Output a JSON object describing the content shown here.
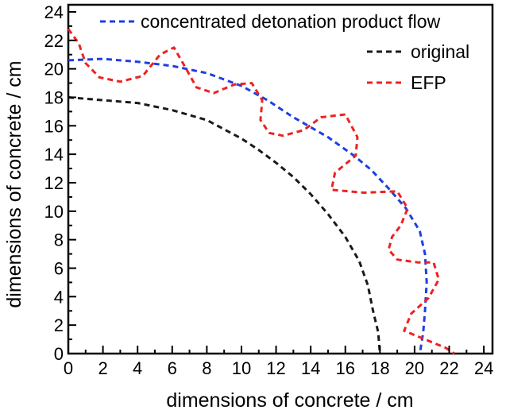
{
  "chart_data": {
    "type": "line",
    "xlabel": "dimensions of concrete / cm",
    "ylabel": "dimensions of concrete / cm",
    "xlim": [
      0,
      24.5
    ],
    "ylim": [
      0,
      24.5
    ],
    "x_ticks": [
      0,
      2,
      4,
      6,
      8,
      10,
      12,
      14,
      16,
      18,
      20,
      22,
      24
    ],
    "y_ticks": [
      0,
      2,
      4,
      6,
      8,
      10,
      12,
      14,
      16,
      18,
      20,
      22,
      24
    ],
    "grid": false,
    "legend_position": "top-right",
    "series": [
      {
        "name": "concentrated detonation product flow",
        "color": "#1f3fe0",
        "dash": "dashed",
        "points": [
          [
            0,
            20.6
          ],
          [
            2,
            20.7
          ],
          [
            4,
            20.5
          ],
          [
            6,
            20.2
          ],
          [
            8,
            19.7
          ],
          [
            10,
            18.8
          ],
          [
            11.5,
            17.8
          ],
          [
            13,
            16.6
          ],
          [
            15,
            15.2
          ],
          [
            16.5,
            13.9
          ],
          [
            17.5,
            12.9
          ],
          [
            18.5,
            11.6
          ],
          [
            19.5,
            10.2
          ],
          [
            20.3,
            8.6
          ],
          [
            20.6,
            7.0
          ],
          [
            20.7,
            5.0
          ],
          [
            20.6,
            3.0
          ],
          [
            20.5,
            1.5
          ],
          [
            20.3,
            0
          ]
        ]
      },
      {
        "name": "original",
        "color": "#1a1a1a",
        "dash": "dashed",
        "points": [
          [
            0,
            18.0
          ],
          [
            2,
            17.8
          ],
          [
            4,
            17.6
          ],
          [
            6,
            17.1
          ],
          [
            8,
            16.4
          ],
          [
            10,
            15.1
          ],
          [
            11,
            14.3
          ],
          [
            12,
            13.4
          ],
          [
            13,
            12.4
          ],
          [
            14,
            11.2
          ],
          [
            15,
            9.8
          ],
          [
            16,
            8.2
          ],
          [
            16.8,
            6.5
          ],
          [
            17.3,
            4.8
          ],
          [
            17.6,
            3.0
          ],
          [
            17.9,
            1.5
          ],
          [
            18.0,
            0
          ]
        ]
      },
      {
        "name": "EFP",
        "color": "#ee2222",
        "dash": "dashed",
        "points": [
          [
            0,
            22.8
          ],
          [
            0.6,
            21.8
          ],
          [
            1.0,
            20.4
          ],
          [
            1.8,
            19.4
          ],
          [
            3.0,
            19.1
          ],
          [
            4.3,
            19.5
          ],
          [
            5.3,
            21.0
          ],
          [
            6.1,
            21.5
          ],
          [
            6.9,
            19.8
          ],
          [
            7.4,
            18.7
          ],
          [
            8.4,
            18.3
          ],
          [
            9.6,
            18.9
          ],
          [
            10.6,
            19.0
          ],
          [
            11.2,
            17.8
          ],
          [
            11.1,
            16.4
          ],
          [
            11.6,
            15.5
          ],
          [
            12.4,
            15.3
          ],
          [
            13.6,
            15.7
          ],
          [
            14.6,
            16.6
          ],
          [
            16.0,
            16.8
          ],
          [
            16.7,
            15.2
          ],
          [
            16.6,
            13.9
          ],
          [
            15.4,
            12.7
          ],
          [
            15.2,
            11.5
          ],
          [
            17.1,
            11.3
          ],
          [
            19.0,
            11.4
          ],
          [
            19.6,
            10.2
          ],
          [
            19.2,
            9.0
          ],
          [
            18.7,
            8.2
          ],
          [
            18.5,
            7.3
          ],
          [
            19.0,
            6.6
          ],
          [
            20.2,
            6.4
          ],
          [
            21.1,
            6.4
          ],
          [
            21.4,
            5.2
          ],
          [
            20.8,
            3.9
          ],
          [
            19.8,
            2.8
          ],
          [
            19.4,
            1.6
          ],
          [
            20.6,
            1.0
          ],
          [
            21.8,
            0.4
          ],
          [
            22.3,
            0
          ]
        ]
      }
    ]
  }
}
